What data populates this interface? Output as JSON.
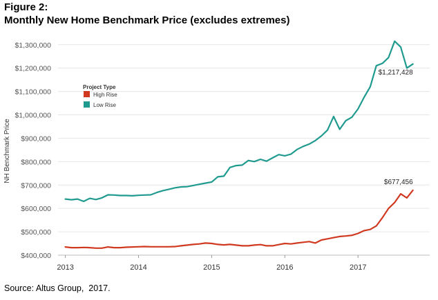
{
  "figure": {
    "label": "Figure 2:",
    "title": "Monthly New Home Benchmark Price (excludes extremes)",
    "source": "Source: Altus Group,  2017."
  },
  "chart_data": {
    "type": "line",
    "title": "Monthly New Home Benchmark Price (excludes extremes)",
    "xlabel": "",
    "ylabel": "NH Benchmark Price",
    "ylim": [
      400000,
      1320000
    ],
    "xlim": [
      2012.9,
      2017.98
    ],
    "yticks": [
      400000,
      500000,
      600000,
      700000,
      800000,
      900000,
      1000000,
      1100000,
      1200000,
      1300000
    ],
    "ytick_labels": [
      "$400,000",
      "$500,000",
      "$600,000",
      "$700,000",
      "$800,000",
      "$900,000",
      "$1,000,000",
      "$1,100,000",
      "$1,200,000",
      "$1,300,000"
    ],
    "xticks": [
      2013,
      2014,
      2015,
      2016,
      2017
    ],
    "xtick_labels": [
      "2013",
      "2014",
      "2015",
      "2016",
      "2017"
    ],
    "legend": {
      "title": "Project Type",
      "position": "top-left",
      "entries": [
        "High Rise",
        "Low Rise"
      ]
    },
    "series": [
      {
        "name": "High Rise",
        "color": "#d0391f",
        "end_label": "$677,456",
        "x": [
          2013.0,
          2013.083,
          2013.167,
          2013.25,
          2013.333,
          2013.417,
          2013.5,
          2013.583,
          2013.667,
          2013.75,
          2013.833,
          2013.917,
          2014.0,
          2014.083,
          2014.167,
          2014.25,
          2014.333,
          2014.417,
          2014.5,
          2014.583,
          2014.667,
          2014.75,
          2014.833,
          2014.917,
          2015.0,
          2015.083,
          2015.167,
          2015.25,
          2015.333,
          2015.417,
          2015.5,
          2015.583,
          2015.667,
          2015.75,
          2015.833,
          2015.917,
          2016.0,
          2016.083,
          2016.167,
          2016.25,
          2016.333,
          2016.417,
          2016.5,
          2016.583,
          2016.667,
          2016.75,
          2016.833,
          2016.917,
          2017.0,
          2017.083,
          2017.167,
          2017.25,
          2017.333,
          2017.417,
          2017.5,
          2017.583,
          2017.667,
          2017.75
        ],
        "values": [
          435000,
          432000,
          432000,
          433000,
          432000,
          430000,
          430000,
          435000,
          432000,
          432000,
          434000,
          435000,
          436000,
          437000,
          436000,
          436000,
          436000,
          436000,
          437000,
          440000,
          443000,
          446000,
          448000,
          452000,
          450000,
          446000,
          444000,
          446000,
          443000,
          440000,
          440000,
          443000,
          445000,
          440000,
          440000,
          445000,
          450000,
          448000,
          452000,
          455000,
          458000,
          452000,
          465000,
          470000,
          475000,
          480000,
          482000,
          485000,
          493000,
          505000,
          510000,
          525000,
          560000,
          600000,
          625000,
          662000,
          645000,
          677456
        ]
      },
      {
        "name": "Low Rise",
        "color": "#1f9a8f",
        "end_label": "$1,217,428",
        "x": [
          2013.0,
          2013.083,
          2013.167,
          2013.25,
          2013.333,
          2013.417,
          2013.5,
          2013.583,
          2013.667,
          2013.75,
          2013.833,
          2013.917,
          2014.0,
          2014.083,
          2014.167,
          2014.25,
          2014.333,
          2014.417,
          2014.5,
          2014.583,
          2014.667,
          2014.75,
          2014.833,
          2014.917,
          2015.0,
          2015.083,
          2015.167,
          2015.25,
          2015.333,
          2015.417,
          2015.5,
          2015.583,
          2015.667,
          2015.75,
          2015.833,
          2015.917,
          2016.0,
          2016.083,
          2016.167,
          2016.25,
          2016.333,
          2016.417,
          2016.5,
          2016.583,
          2016.667,
          2016.75,
          2016.833,
          2016.917,
          2017.0,
          2017.083,
          2017.167,
          2017.25,
          2017.333,
          2017.417,
          2017.5,
          2017.583,
          2017.667,
          2017.75
        ],
        "values": [
          640000,
          637000,
          640000,
          630000,
          643000,
          638000,
          645000,
          658000,
          657000,
          655000,
          655000,
          654000,
          656000,
          657000,
          658000,
          668000,
          676000,
          682000,
          688000,
          692000,
          693000,
          698000,
          703000,
          708000,
          713000,
          735000,
          738000,
          775000,
          783000,
          785000,
          805000,
          800000,
          810000,
          802000,
          816000,
          830000,
          825000,
          832000,
          852000,
          865000,
          875000,
          890000,
          910000,
          935000,
          993000,
          938000,
          975000,
          990000,
          1025000,
          1075000,
          1120000,
          1210000,
          1220000,
          1245000,
          1315000,
          1290000,
          1200000,
          1217428
        ]
      }
    ]
  }
}
